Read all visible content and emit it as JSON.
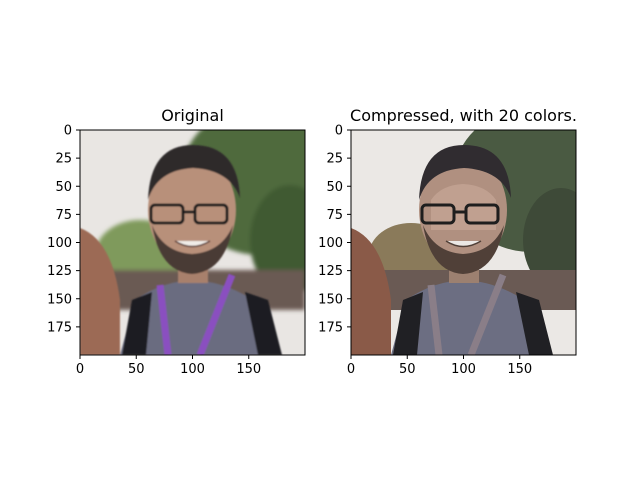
{
  "chart_data": [
    {
      "type": "image",
      "title": "Original",
      "image_width": 200,
      "image_height": 200,
      "xlim": [
        0,
        200
      ],
      "ylim": [
        200,
        0
      ],
      "xticks": [
        0,
        50,
        100,
        150
      ],
      "yticks": [
        0,
        25,
        50,
        75,
        100,
        125,
        150,
        175
      ],
      "grid": false
    },
    {
      "type": "image",
      "title": "Compressed, with 20 colors.",
      "image_width": 200,
      "image_height": 200,
      "xlim": [
        0,
        200
      ],
      "ylim": [
        200,
        0
      ],
      "xticks": [
        0,
        50,
        100,
        150
      ],
      "yticks": [
        0,
        25,
        50,
        75,
        100,
        125,
        150,
        175
      ],
      "grid": false,
      "n_colors": 20
    }
  ],
  "colors": {
    "sky": "#e9e6e3",
    "trees": "#4f6b3c",
    "trees_light": "#7f9a5c",
    "shirt": "#6a6c80",
    "skin": "#b8907a",
    "hair": "#2e2a2c",
    "lanyard": "#8a4fc0",
    "backpack": "#1c1c20",
    "crowd": "#6b5a52",
    "hair_left": "#9c6a55"
  }
}
